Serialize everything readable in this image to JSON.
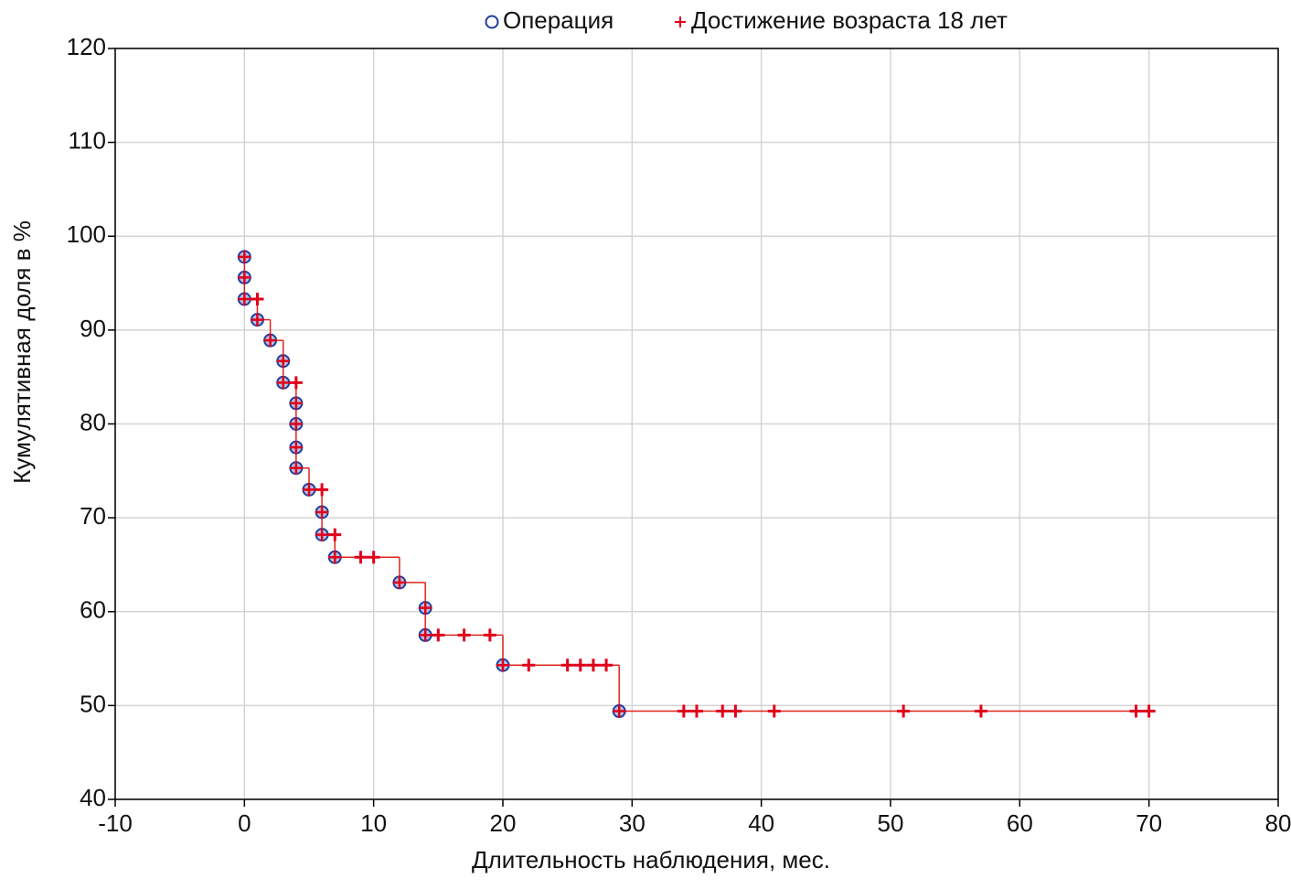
{
  "chart_data": {
    "type": "survival",
    "x_label": "Длительность наблюдения, мес.",
    "y_label": "Кумулятивная доля в %",
    "xlim": [
      -10,
      80
    ],
    "ylim": [
      40,
      120
    ],
    "xticks": [
      -10,
      0,
      10,
      20,
      30,
      40,
      50,
      60,
      70,
      80
    ],
    "yticks": [
      40,
      50,
      60,
      70,
      80,
      90,
      100,
      110,
      120
    ],
    "grid": true,
    "line_color": "#e0241b",
    "series": [
      {
        "name": "Операция",
        "marker": "circle",
        "color": "#1f3f9f",
        "x": [
          0,
          0,
          0,
          1,
          2,
          3,
          3,
          4,
          4,
          4,
          4,
          5,
          6,
          6,
          7,
          12,
          14,
          14,
          20,
          29
        ],
        "values": [
          97.8,
          95.6,
          93.3,
          91.1,
          88.9,
          86.7,
          84.4,
          82.2,
          80,
          77.5,
          75.3,
          73,
          70.6,
          68.2,
          65.8,
          63.1,
          60.4,
          57.5,
          54.3,
          49.4
        ]
      },
      {
        "name": "Достижение возраста 18 лет",
        "marker": "plus",
        "color": "#e0001b",
        "x": [
          1,
          4,
          6,
          7,
          9,
          10,
          15,
          17,
          19,
          22,
          25,
          26,
          27,
          28,
          34,
          35,
          37,
          38,
          41,
          51,
          57,
          69,
          70
        ],
        "values": [
          93.3,
          84.4,
          73,
          68.2,
          65.8,
          65.8,
          57.5,
          57.5,
          57.5,
          54.3,
          54.3,
          54.3,
          54.3,
          54.3,
          49.4,
          49.4,
          49.4,
          49.4,
          49.4,
          49.4,
          49.4,
          49.4,
          49.4
        ]
      }
    ]
  }
}
